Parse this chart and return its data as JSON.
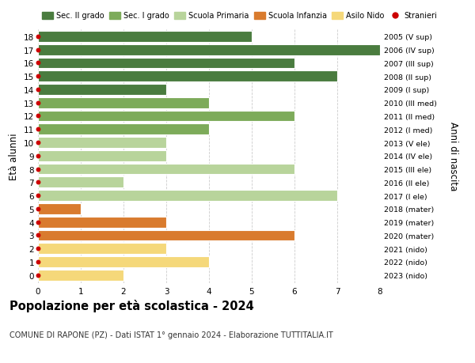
{
  "ages": [
    18,
    17,
    16,
    15,
    14,
    13,
    12,
    11,
    10,
    9,
    8,
    7,
    6,
    5,
    4,
    3,
    2,
    1,
    0
  ],
  "right_labels": [
    "2005 (V sup)",
    "2006 (IV sup)",
    "2007 (III sup)",
    "2008 (II sup)",
    "2009 (I sup)",
    "2010 (III med)",
    "2011 (II med)",
    "2012 (I med)",
    "2013 (V ele)",
    "2014 (IV ele)",
    "2015 (III ele)",
    "2016 (II ele)",
    "2017 (I ele)",
    "2018 (mater)",
    "2019 (mater)",
    "2020 (mater)",
    "2021 (nido)",
    "2022 (nido)",
    "2023 (nido)"
  ],
  "values": [
    5,
    8,
    6,
    7,
    3,
    4,
    6,
    4,
    3,
    3,
    6,
    2,
    7,
    1,
    3,
    6,
    3,
    4,
    2
  ],
  "colors": [
    "#4a7c3f",
    "#4a7c3f",
    "#4a7c3f",
    "#4a7c3f",
    "#4a7c3f",
    "#7dab5a",
    "#7dab5a",
    "#7dab5a",
    "#b8d49b",
    "#b8d49b",
    "#b8d49b",
    "#b8d49b",
    "#b8d49b",
    "#d97b2e",
    "#d97b2e",
    "#d97b2e",
    "#f5d87a",
    "#f5d87a",
    "#f5d87a"
  ],
  "legend_labels": [
    "Sec. II grado",
    "Sec. I grado",
    "Scuola Primaria",
    "Scuola Infanzia",
    "Asilo Nido",
    "Stranieri"
  ],
  "legend_colors": [
    "#4a7c3f",
    "#7dab5a",
    "#b8d49b",
    "#d97b2e",
    "#f5d87a",
    "#cc0000"
  ],
  "title": "Popolazione per età scolastica - 2024",
  "subtitle": "COMUNE DI RAPONE (PZ) - Dati ISTAT 1° gennaio 2024 - Elaborazione TUTTITALIA.IT",
  "ylabel": "Età alunni",
  "right_ylabel": "Anni di nascita",
  "xlim": [
    0,
    8
  ],
  "xticks": [
    0,
    1,
    2,
    3,
    4,
    5,
    6,
    7,
    8
  ],
  "bar_height": 0.82,
  "fig_bg": "#ffffff",
  "grid_color": "#cccccc",
  "dot_color": "#cc0000",
  "dot_size": 18
}
